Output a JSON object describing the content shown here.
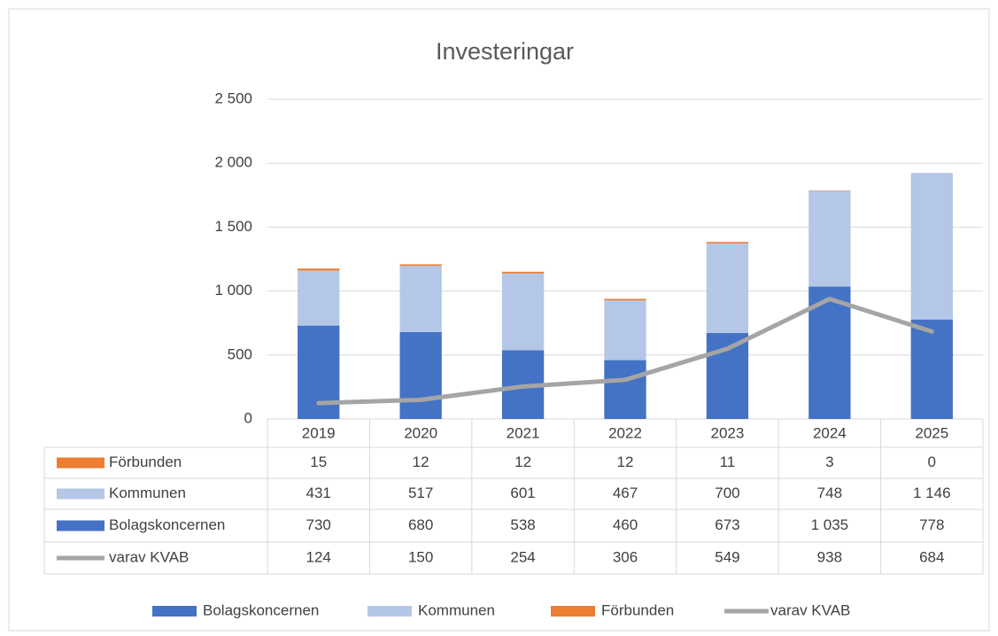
{
  "chart_data": {
    "type": "bar",
    "stacked": true,
    "title": "Investeringar",
    "categories": [
      "2019",
      "2020",
      "2021",
      "2022",
      "2023",
      "2024",
      "2025"
    ],
    "series": [
      {
        "name": "Bolagskoncernen",
        "color": "#4472c4",
        "values": [
          730,
          680,
          538,
          460,
          673,
          1035,
          778
        ],
        "value_labels": [
          "730",
          "680",
          "538",
          "460",
          "673",
          "1 035",
          "778"
        ]
      },
      {
        "name": "Kommunen",
        "color": "#b4c7e7",
        "values": [
          431,
          517,
          601,
          467,
          700,
          748,
          1146
        ],
        "value_labels": [
          "431",
          "517",
          "601",
          "467",
          "700",
          "748",
          "1 146"
        ]
      },
      {
        "name": "Förbunden",
        "color": "#ed7d31",
        "values": [
          15,
          12,
          12,
          12,
          11,
          3,
          0
        ],
        "value_labels": [
          "15",
          "12",
          "12",
          "12",
          "11",
          "3",
          "0"
        ]
      },
      {
        "name": "varav KVAB",
        "type": "line",
        "color": "#a5a5a5",
        "values": [
          124,
          150,
          254,
          306,
          549,
          938,
          684
        ],
        "value_labels": [
          "124",
          "150",
          "254",
          "306",
          "549",
          "938",
          "684"
        ]
      }
    ],
    "ylim": [
      0,
      2500
    ],
    "yticks": [
      0,
      500,
      {
        "value": 1000,
        "label": "1 000"
      },
      {
        "value": 1500,
        "label": "1 500"
      },
      {
        "value": 2000,
        "label": "2 000"
      },
      {
        "value": 2500,
        "label": "2 500"
      }
    ],
    "grid": true,
    "legend": "bottom"
  }
}
